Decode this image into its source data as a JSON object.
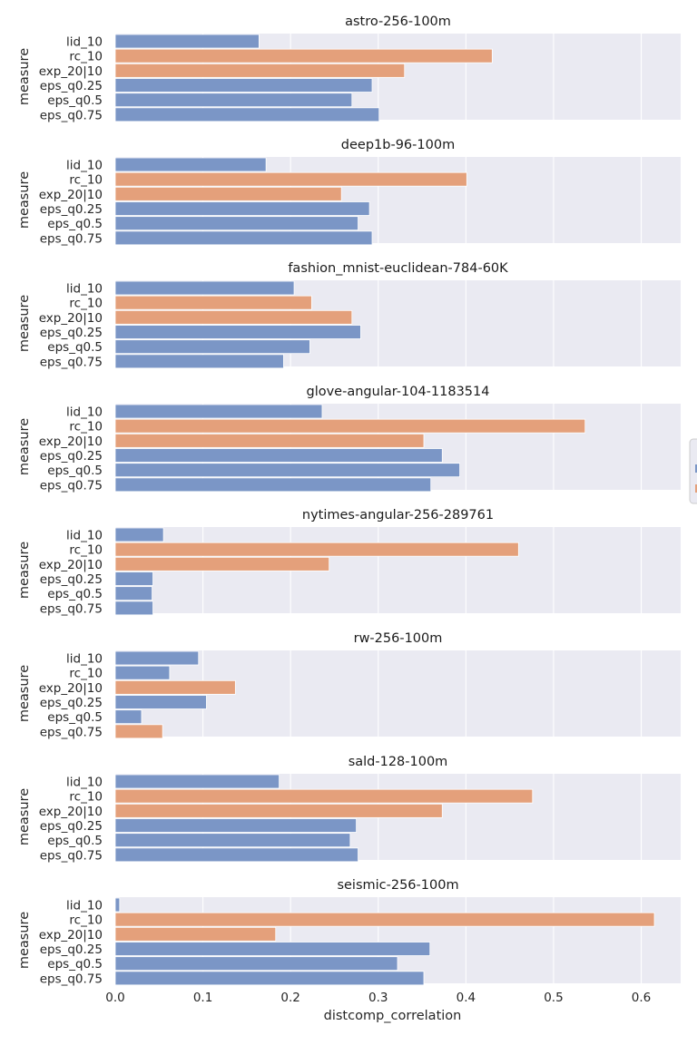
{
  "chart_data": {
    "type": "bar",
    "orientation": "horizontal",
    "xlabel": "distcomp_correlation",
    "ylabel": "measure",
    "xlim": [
      0.0,
      0.645
    ],
    "xticks": [
      "0.0",
      "0.1",
      "0.2",
      "0.3",
      "0.4",
      "0.5",
      "0.6"
    ],
    "grid": true,
    "categories": [
      "lid_10",
      "rc_10",
      "exp_20|10",
      "eps_q0.25",
      "eps_q0.5",
      "eps_q0.75"
    ],
    "colors": {
      "blue": "#7b96c6",
      "orange": "#e4a07b",
      "plot_bg": "#eaeaf2",
      "grid": "#ffffff"
    },
    "panels": [
      {
        "title": "astro-256-100m",
        "values": [
          0.164,
          0.43,
          0.33,
          0.293,
          0.27,
          0.301
        ],
        "colors": [
          "blue",
          "orange",
          "orange",
          "blue",
          "blue",
          "blue"
        ]
      },
      {
        "title": "deep1b-96-100m",
        "values": [
          0.172,
          0.401,
          0.258,
          0.29,
          0.277,
          0.293
        ],
        "colors": [
          "blue",
          "orange",
          "orange",
          "blue",
          "blue",
          "blue"
        ]
      },
      {
        "title": "fashion_mnist-euclidean-784-60K",
        "values": [
          0.204,
          0.224,
          0.27,
          0.28,
          0.222,
          0.192
        ],
        "colors": [
          "blue",
          "orange",
          "orange",
          "blue",
          "blue",
          "blue"
        ]
      },
      {
        "title": "glove-angular-104-1183514",
        "values": [
          0.236,
          0.536,
          0.352,
          0.373,
          0.393,
          0.36
        ],
        "colors": [
          "blue",
          "orange",
          "orange",
          "blue",
          "blue",
          "blue"
        ]
      },
      {
        "title": "nytimes-angular-256-289761",
        "values": [
          0.055,
          0.46,
          0.244,
          0.043,
          0.042,
          0.043
        ],
        "colors": [
          "blue",
          "orange",
          "orange",
          "blue",
          "blue",
          "blue"
        ]
      },
      {
        "title": "rw-256-100m",
        "values": [
          0.095,
          0.062,
          0.137,
          0.104,
          0.03,
          0.054
        ],
        "colors": [
          "blue",
          "blue",
          "orange",
          "blue",
          "blue",
          "orange"
        ]
      },
      {
        "title": "sald-128-100m",
        "values": [
          0.187,
          0.476,
          0.373,
          0.275,
          0.268,
          0.277
        ],
        "colors": [
          "blue",
          "orange",
          "orange",
          "blue",
          "blue",
          "blue"
        ]
      },
      {
        "title": "seismic-256-100m",
        "values": [
          0.005,
          0.615,
          0.183,
          0.359,
          0.322,
          0.352
        ],
        "colors": [
          "blue",
          "orange",
          "orange",
          "blue",
          "blue",
          "blue"
        ]
      }
    ],
    "legend": {
      "placement": "right-center",
      "entry_colors": [
        "blue",
        "orange"
      ]
    }
  }
}
